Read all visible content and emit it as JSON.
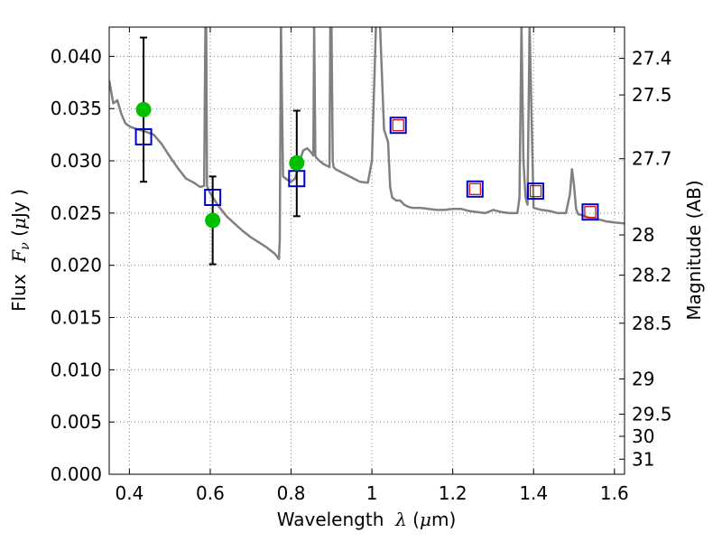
{
  "chart_data": {
    "type": "line",
    "xlabel": "Wavelength",
    "xlabel_symbol": "λ",
    "xlabel_unit_open": " (",
    "xlabel_unit_mu": "μ",
    "xlabel_unit_close": "m)",
    "ylabel": "Flux",
    "ylabel_symbol": "F",
    "ylabel_symbol_sub": "ν",
    "ylabel_unit_open": "  (",
    "ylabel_unit_mu": "μ",
    "ylabel_unit_close": "Jy )",
    "y2label": "Magnitude (AB)",
    "xlim": [
      0.35,
      1.625
    ],
    "ylim": [
      0.0,
      0.0428
    ],
    "grid": true,
    "x_ticks": [
      0.4,
      0.6,
      0.8,
      1.0,
      1.2,
      1.4,
      1.6
    ],
    "x_tick_labels": [
      "0.4",
      "0.6",
      "0.8",
      "1",
      "1.2",
      "1.4",
      "1.6"
    ],
    "y_ticks": [
      0.0,
      0.005,
      0.01,
      0.015,
      0.02,
      0.025,
      0.03,
      0.035,
      0.04
    ],
    "y_tick_labels": [
      "0.000",
      "0.005",
      "0.010",
      "0.015",
      "0.020",
      "0.025",
      "0.030",
      "0.035",
      "0.040"
    ],
    "y2_tick_labels": [
      "27.4",
      "27.5",
      "27.7",
      "28",
      "28.2",
      "28.5",
      "29",
      "29.5",
      "30",
      "31"
    ],
    "y2_tick_mags": [
      27.4,
      27.5,
      27.7,
      28.0,
      28.2,
      28.5,
      29.0,
      29.5,
      30.0,
      31.0
    ],
    "colors": {
      "model": "#808080",
      "observed": "#00c000",
      "model_phot": "#0000cc",
      "model_phot_inner": "#cc0000",
      "errorbar": "#000000",
      "grid": "#808080"
    },
    "series": [
      {
        "kind": "model_sed",
        "x": [
          0.35,
          0.36,
          0.37,
          0.38,
          0.39,
          0.4,
          0.42,
          0.44,
          0.46,
          0.48,
          0.5,
          0.52,
          0.54,
          0.56,
          0.575,
          0.585,
          0.588,
          0.59,
          0.592,
          0.596,
          0.6,
          0.62,
          0.64,
          0.66,
          0.68,
          0.7,
          0.72,
          0.74,
          0.76,
          0.77,
          0.772,
          0.775,
          0.78,
          0.79,
          0.8,
          0.81,
          0.82,
          0.83,
          0.84,
          0.85,
          0.855,
          0.857,
          0.86,
          0.862,
          0.865,
          0.87,
          0.88,
          0.89,
          0.895,
          0.897,
          0.9,
          0.903,
          0.905,
          0.91,
          0.93,
          0.95,
          0.97,
          0.99,
          1.0,
          1.01,
          1.02,
          1.03,
          1.04,
          1.045,
          1.05,
          1.06,
          1.07,
          1.08,
          1.085,
          1.09,
          1.1,
          1.12,
          1.14,
          1.16,
          1.18,
          1.2,
          1.22,
          1.24,
          1.26,
          1.28,
          1.3,
          1.32,
          1.34,
          1.36,
          1.365,
          1.37,
          1.375,
          1.38,
          1.385,
          1.39,
          1.4,
          1.42,
          1.44,
          1.46,
          1.48,
          1.49,
          1.495,
          1.5,
          1.505,
          1.51,
          1.52,
          1.54,
          1.56,
          1.58,
          1.6,
          1.625
        ],
        "y": [
          0.0377,
          0.0355,
          0.0358,
          0.0345,
          0.0336,
          0.0333,
          0.033,
          0.0328,
          0.0325,
          0.0316,
          0.0304,
          0.0293,
          0.0283,
          0.0279,
          0.0275,
          0.0276,
          0.043,
          0.043,
          0.0276,
          0.0272,
          0.0269,
          0.0257,
          0.0247,
          0.024,
          0.0233,
          0.0227,
          0.0222,
          0.0217,
          0.0211,
          0.0206,
          0.0225,
          0.043,
          0.0285,
          0.0282,
          0.028,
          0.0283,
          0.0298,
          0.031,
          0.0312,
          0.0308,
          0.0305,
          0.043,
          0.0306,
          0.0303,
          0.0302,
          0.03,
          0.0297,
          0.0295,
          0.0294,
          0.043,
          0.043,
          0.03,
          0.0294,
          0.0292,
          0.0288,
          0.0284,
          0.028,
          0.0279,
          0.03,
          0.043,
          0.043,
          0.033,
          0.0318,
          0.0275,
          0.0265,
          0.0262,
          0.0262,
          0.0258,
          0.0257,
          0.0256,
          0.0255,
          0.0255,
          0.0254,
          0.0253,
          0.0253,
          0.0254,
          0.0254,
          0.0252,
          0.0251,
          0.025,
          0.0253,
          0.0251,
          0.025,
          0.025,
          0.0265,
          0.043,
          0.03,
          0.0265,
          0.0258,
          0.043,
          0.0255,
          0.0253,
          0.0252,
          0.025,
          0.025,
          0.0268,
          0.0292,
          0.0277,
          0.0254,
          0.0249,
          0.0248,
          0.0245,
          0.0244,
          0.0242,
          0.0241,
          0.024
        ]
      },
      {
        "kind": "observed_flux",
        "x": [
          0.435,
          0.606,
          0.814
        ],
        "y": [
          0.0349,
          0.0243,
          0.0298
        ],
        "yerr_low": [
          0.028,
          0.0201,
          0.0247
        ],
        "yerr_high": [
          0.0418,
          0.0285,
          0.0348
        ]
      },
      {
        "kind": "model_photometry",
        "x": [
          0.435,
          0.606,
          0.814,
          1.065,
          1.255,
          1.405,
          1.54
        ],
        "y": [
          0.0323,
          0.0265,
          0.0283,
          0.0334,
          0.0273,
          0.0271,
          0.0251
        ],
        "inner_marker": [
          false,
          false,
          false,
          true,
          true,
          true,
          true
        ]
      }
    ]
  }
}
